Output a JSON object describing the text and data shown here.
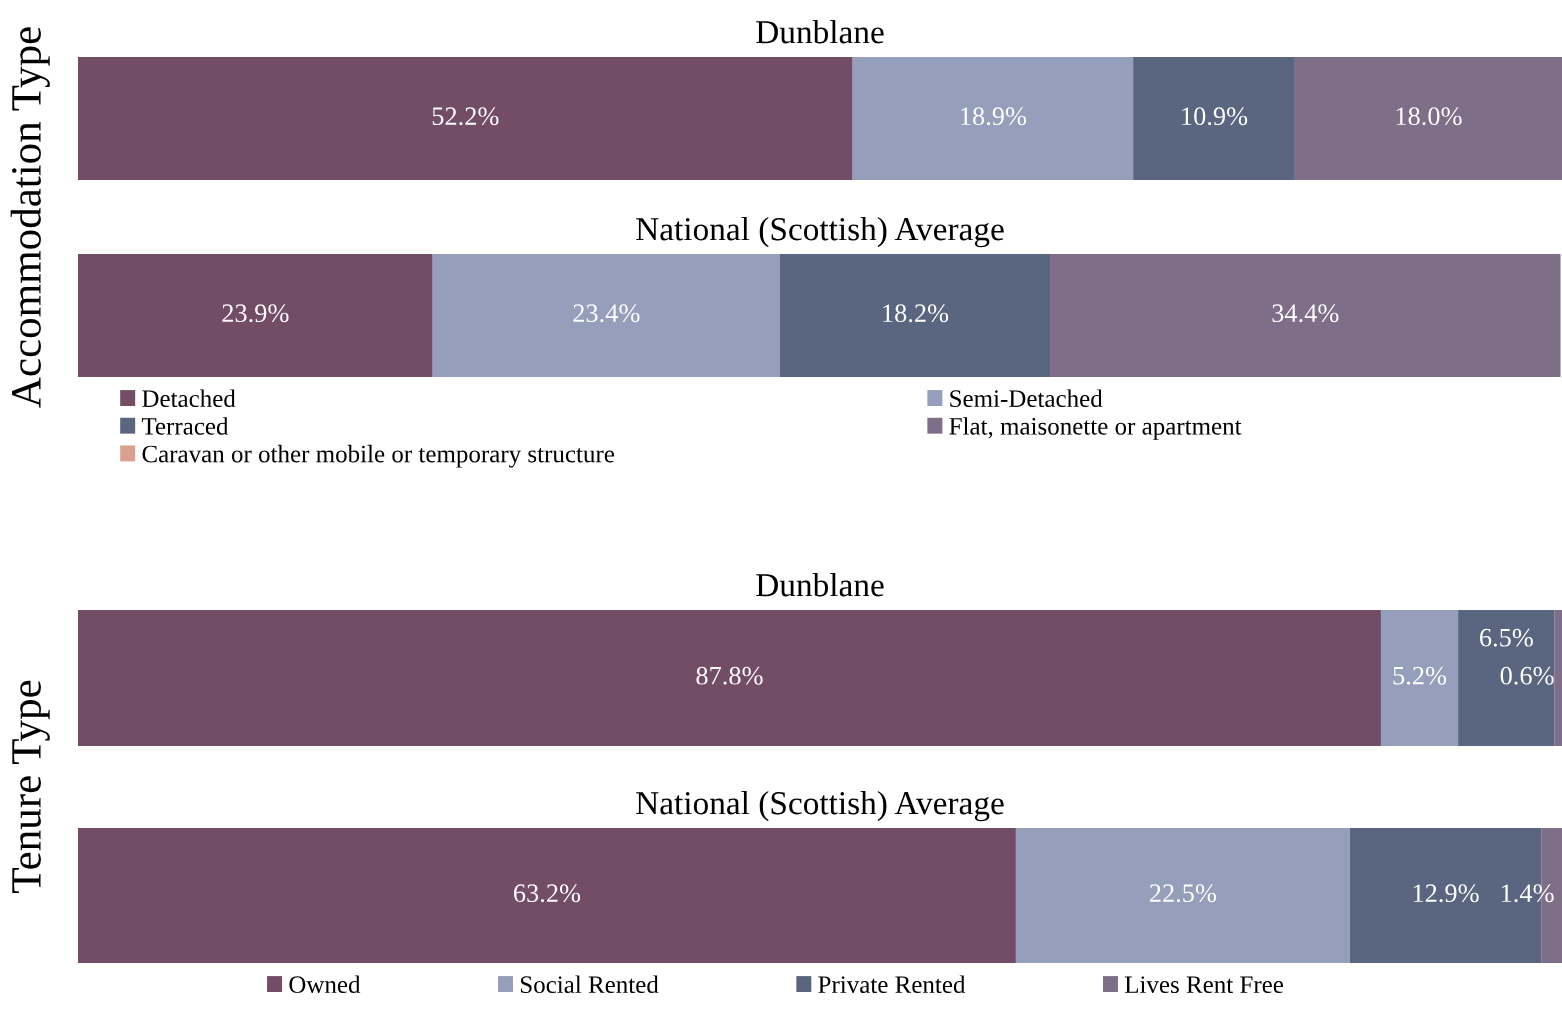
{
  "chart_data": [
    {
      "type": "bar",
      "orientation": "horizontal",
      "stacked": true,
      "title": "Dunblane",
      "ylabel": "Accommodation Type",
      "categories": [
        null
      ],
      "xlim": [
        0,
        100
      ],
      "tick_labels": false,
      "legend": "bottom",
      "series": [
        {
          "name": "Detached",
          "color": "#734c66",
          "values": [
            52.2
          ],
          "value_labels": [
            "52.2%"
          ]
        },
        {
          "name": "Semi-Detached",
          "color": "#959fbb",
          "values": [
            18.9
          ],
          "value_labels": [
            "18.9%"
          ]
        },
        {
          "name": "Terraced",
          "color": "#5a6680",
          "values": [
            10.9
          ],
          "value_labels": [
            "10.9%"
          ]
        },
        {
          "name": "Flat, maisonette or apartment",
          "color": "#7f6e88",
          "values": [
            18.0
          ],
          "value_labels": [
            "18.0%"
          ]
        },
        {
          "name": "Caravan or other mobile or temporary structure",
          "color": "#d9a090",
          "values": [
            null
          ],
          "value_labels": [
            null
          ]
        }
      ]
    },
    {
      "type": "bar",
      "orientation": "horizontal",
      "stacked": true,
      "title": "National (Scottish) Average",
      "categories": [
        null
      ],
      "xlim": [
        0,
        100
      ],
      "tick_labels": false,
      "series": [
        {
          "color": "#734c66",
          "values": [
            23.9
          ],
          "value_labels": [
            "23.9%"
          ]
        },
        {
          "color": "#959fbb",
          "values": [
            23.4
          ],
          "value_labels": [
            "23.4%"
          ]
        },
        {
          "color": "#5a6680",
          "values": [
            18.2
          ],
          "value_labels": [
            "18.2%"
          ]
        },
        {
          "color": "#7f6e88",
          "values": [
            34.4
          ],
          "value_labels": [
            "34.4%"
          ]
        }
      ]
    },
    {
      "type": "bar",
      "orientation": "horizontal",
      "stacked": true,
      "title": "Dunblane",
      "ylabel": "Tenure Type",
      "categories": [
        null
      ],
      "xlim": [
        0,
        100
      ],
      "tick_labels": false,
      "legend": "bottom",
      "series": [
        {
          "name": "Owned",
          "color": "#734c66",
          "values": [
            87.8
          ],
          "value_labels": [
            "87.8%"
          ]
        },
        {
          "name": "Social Rented",
          "color": "#959fbb",
          "values": [
            5.2
          ],
          "value_labels": [
            "5.2%"
          ]
        },
        {
          "name": "Private Rented",
          "color": "#5a6680",
          "values": [
            6.5
          ],
          "value_labels": [
            "6.5%"
          ]
        },
        {
          "name": "Lives Rent Free",
          "color": "#7f6e88",
          "values": [
            0.6
          ],
          "value_labels": [
            "0.6%"
          ]
        }
      ]
    },
    {
      "type": "bar",
      "orientation": "horizontal",
      "stacked": true,
      "title": "National (Scottish) Average",
      "categories": [
        null
      ],
      "xlim": [
        0,
        100
      ],
      "tick_labels": false,
      "series": [
        {
          "color": "#734c66",
          "values": [
            63.2
          ],
          "value_labels": [
            "63.2%"
          ]
        },
        {
          "color": "#959fbb",
          "values": [
            22.5
          ],
          "value_labels": [
            "22.5%"
          ]
        },
        {
          "color": "#5a6680",
          "values": [
            12.9
          ],
          "value_labels": [
            "12.9%"
          ]
        },
        {
          "color": "#7f6e88",
          "values": [
            1.4
          ],
          "value_labels": [
            "1.4%"
          ]
        }
      ]
    }
  ]
}
